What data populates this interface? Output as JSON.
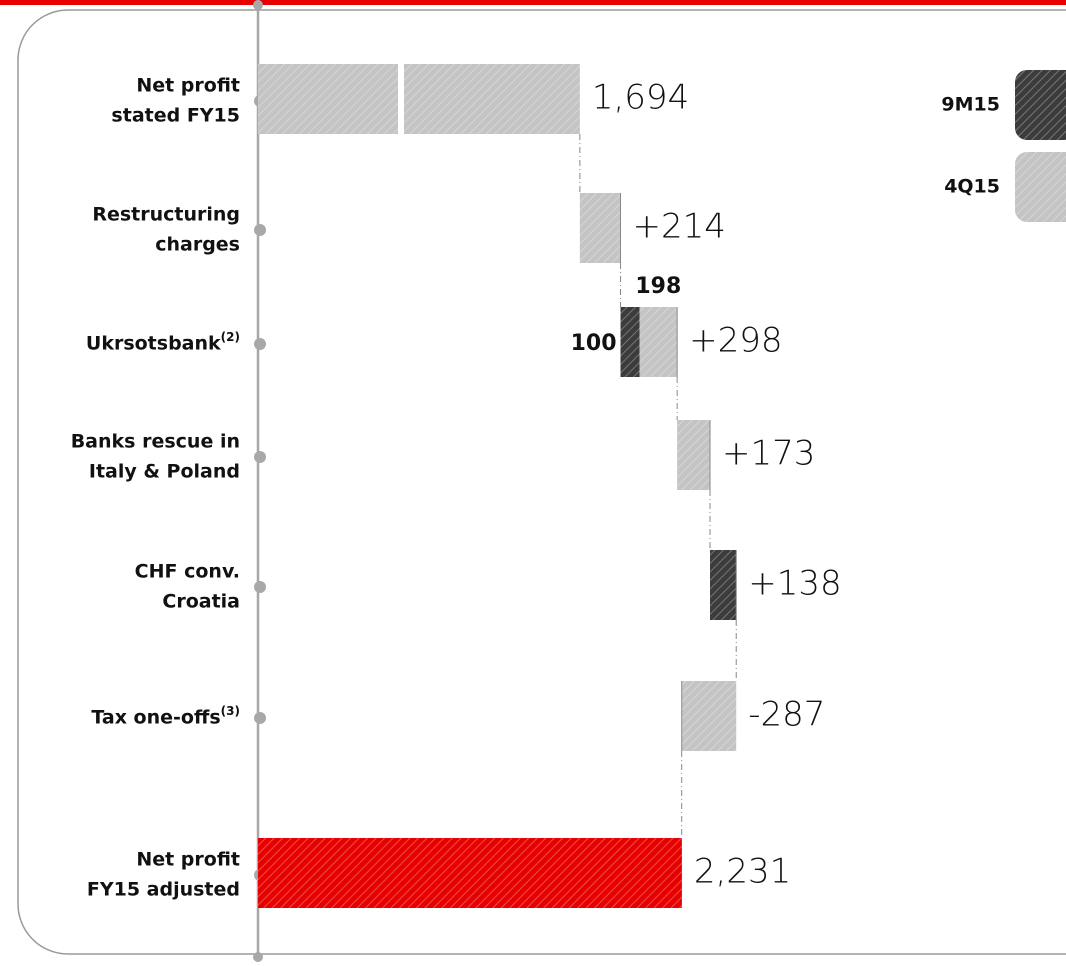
{
  "chart_data": {
    "type": "waterfall",
    "categories": [
      [
        "Net profit",
        "stated FY15"
      ],
      [
        "Restructuring",
        "charges"
      ],
      [
        "Ukrsotsbank"
      ],
      [
        "Banks rescue in",
        "Italy & Poland"
      ],
      [
        "CHF conv.",
        "Croatia"
      ],
      [
        "Tax one-offs"
      ],
      [
        "Net profit",
        "FY15 adjusted"
      ]
    ],
    "category_notes": [
      null,
      null,
      "(2)",
      null,
      null,
      "(3)",
      null
    ],
    "values": [
      1694,
      214,
      298,
      173,
      138,
      -287,
      2231
    ],
    "value_labels": [
      "1,694",
      "+214",
      "+298",
      "+173",
      "+138",
      "-287",
      "2,231"
    ],
    "series": [
      {
        "name": "9M15",
        "color": "#3c3c3c",
        "values": [
          null,
          null,
          100,
          null,
          138,
          null,
          null
        ]
      },
      {
        "name": "4Q15",
        "color": "#c4c4c4",
        "values": [
          null,
          214,
          198,
          173,
          null,
          -287,
          null
        ]
      }
    ],
    "start_color": "#c4c4c4",
    "end_color": "#e60000"
  }
}
